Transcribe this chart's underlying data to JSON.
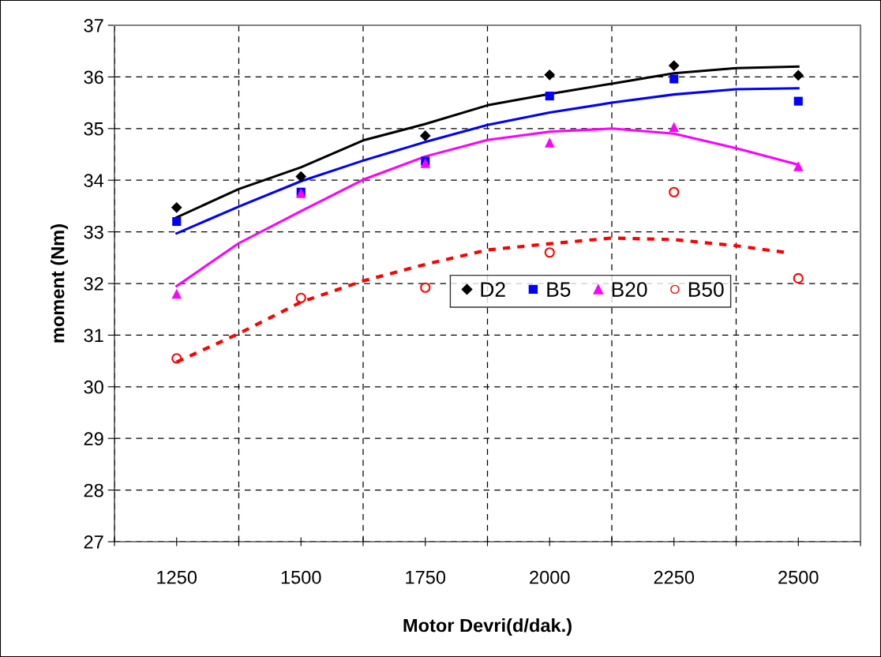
{
  "chart_data": {
    "type": "scatter",
    "xlabel": "Motor Devri(d/dak.)",
    "ylabel": "moment (Nm)",
    "x": [
      1250,
      1500,
      1750,
      2000,
      2250,
      2500
    ],
    "xlim": [
      1125,
      2625
    ],
    "xticks": [
      1250,
      1500,
      1750,
      2000,
      2250,
      2500,
      {
        "value": 1125,
        "label": null
      },
      {
        "value": 1375,
        "label": null
      },
      {
        "value": 1625,
        "label": null
      },
      {
        "value": 1875,
        "label": null
      },
      {
        "value": 2125,
        "label": null
      },
      {
        "value": 2375,
        "label": null
      },
      {
        "value": 2625,
        "label": null
      }
    ],
    "ylim": [
      27,
      37
    ],
    "yticks": [
      27,
      28,
      29,
      30,
      31,
      32,
      33,
      34,
      35,
      36,
      37
    ],
    "grid": true,
    "legend": "center right",
    "series": [
      {
        "name": "D2",
        "color": "#000000",
        "marker": "diamond",
        "values": [
          33.47,
          34.07,
          34.86,
          36.04,
          36.22,
          36.03
        ]
      },
      {
        "name": "B5",
        "color": "#0000ff",
        "marker": "square",
        "values": [
          33.2,
          33.77,
          34.37,
          35.63,
          35.96,
          35.53
        ]
      },
      {
        "name": "B20",
        "color": "#ff00ff",
        "marker": "triangle",
        "values": [
          31.8,
          33.75,
          34.33,
          34.73,
          35.03,
          34.27
        ]
      },
      {
        "name": "B50",
        "color": "#ff0000",
        "marker": "circle",
        "values": [
          30.55,
          31.72,
          31.92,
          32.6,
          33.77,
          32.1
        ]
      },
      {
        "type": "line",
        "color": "#000000",
        "line_style": "solid",
        "x": [
          1250,
          1375,
          1500,
          1625,
          1750,
          1875,
          2000,
          2125,
          2250,
          2375,
          2500
        ],
        "values": [
          33.28,
          33.83,
          34.25,
          34.77,
          35.09,
          35.45,
          35.67,
          35.87,
          36.07,
          36.17,
          36.2
        ]
      },
      {
        "type": "line",
        "color": "#0000ff",
        "line_style": "solid",
        "x": [
          1250,
          1375,
          1500,
          1625,
          1750,
          1875,
          2000,
          2125,
          2250,
          2375,
          2500
        ],
        "values": [
          32.97,
          33.49,
          33.98,
          34.38,
          34.74,
          35.07,
          35.31,
          35.5,
          35.66,
          35.76,
          35.78
        ]
      },
      {
        "type": "line",
        "color": "#ff00ff",
        "line_style": "solid",
        "x": [
          1250,
          1375,
          1500,
          1625,
          1750,
          1875,
          2000,
          2125,
          2250,
          2375,
          2500
        ],
        "values": [
          31.95,
          32.78,
          33.4,
          34.01,
          34.46,
          34.78,
          34.94,
          35.0,
          34.9,
          34.62,
          34.3
        ]
      },
      {
        "type": "line",
        "color": "#ff0000",
        "line_style": "dashed",
        "x": [
          1250,
          1375,
          1500,
          1625,
          1750,
          1875,
          2000,
          2125,
          2250,
          2375,
          2475
        ],
        "values": [
          30.48,
          31.03,
          31.64,
          32.05,
          32.37,
          32.65,
          32.77,
          32.88,
          32.85,
          32.73,
          32.6
        ]
      }
    ]
  }
}
